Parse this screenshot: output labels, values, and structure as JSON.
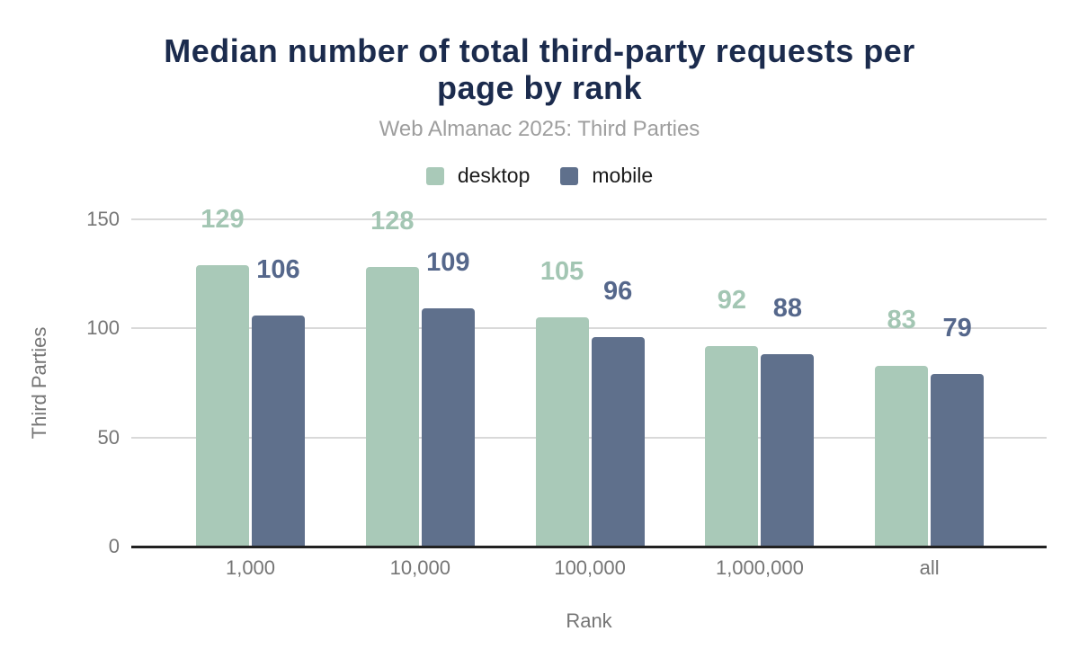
{
  "header": {
    "title_lines": [
      "Median number of total third-party requests per",
      "page by rank"
    ],
    "subtitle": "Web Almanac 2025: Third Parties"
  },
  "chart_data": {
    "type": "bar",
    "title": "Median number of total third-party requests per page by rank",
    "subtitle": "Web Almanac 2025: Third Parties",
    "categories": [
      "1,000",
      "10,000",
      "100,000",
      "1,000,000",
      "all"
    ],
    "series": [
      {
        "name": "desktop",
        "color": "#a9c9b8",
        "label_color": "#a3c6b3",
        "values": [
          129,
          128,
          105,
          92,
          83
        ]
      },
      {
        "name": "mobile",
        "color": "#5f708c",
        "label_color": "#55678b",
        "values": [
          106,
          109,
          96,
          88,
          79
        ]
      }
    ],
    "xlabel": "Rank",
    "ylabel": "Third Parties",
    "ylim": [
      0,
      150
    ],
    "yticks": [
      0,
      50,
      100,
      150
    ],
    "ytick_labels": [
      "0",
      "50",
      "100",
      "150"
    ],
    "grid": true,
    "legend_position": "top",
    "value_labels": true
  },
  "colors": {
    "title": "#1b2b4d",
    "subtitle": "#9e9e9e",
    "axis_text": "#757575",
    "legend_text": "#1a1a1a",
    "gridline": "#d9d9d9",
    "axis_line": "#212121",
    "background": "#ffffff"
  }
}
